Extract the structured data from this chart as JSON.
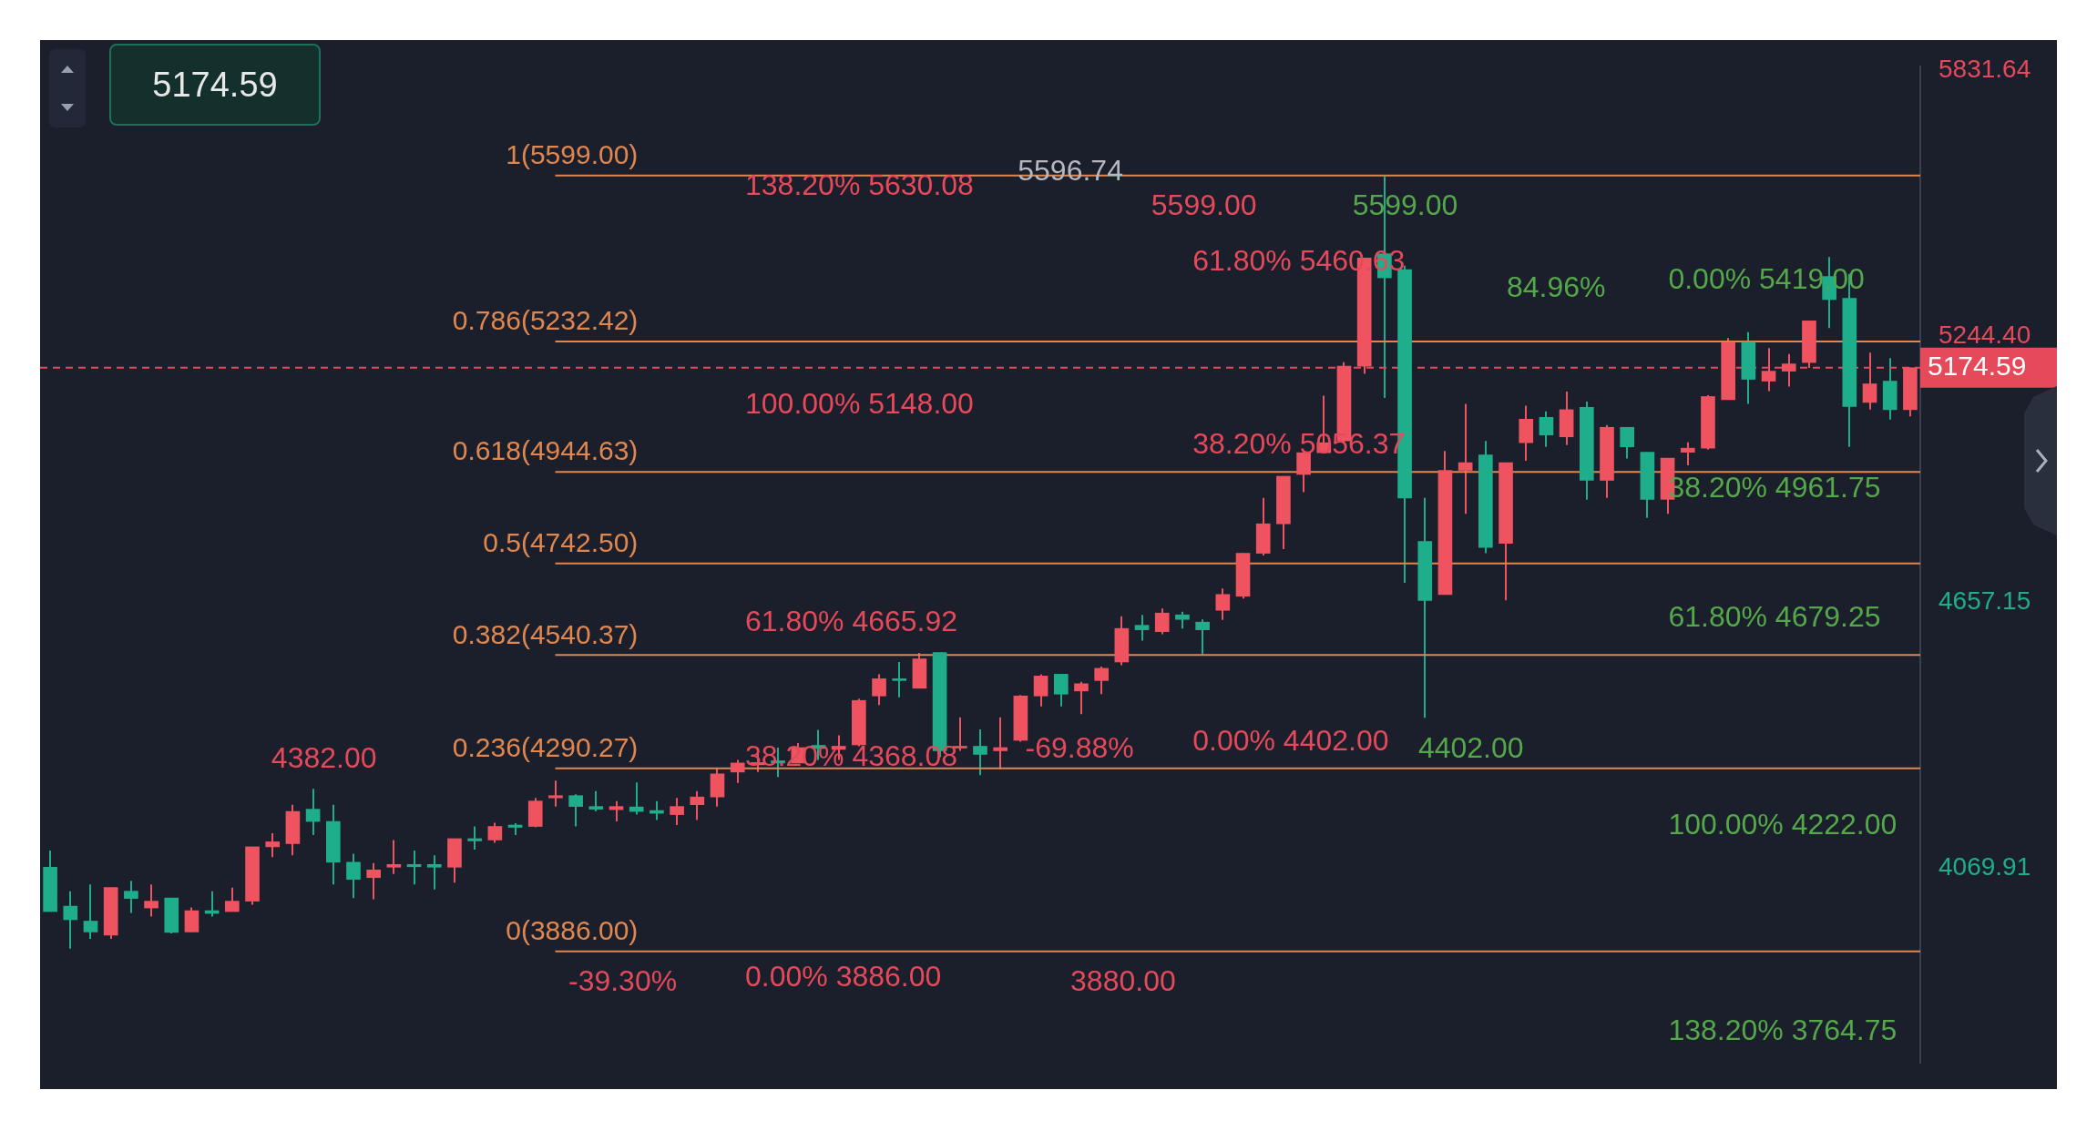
{
  "chart_data": {
    "type": "candlestick",
    "categories": [
      null,
      null,
      null,
      null,
      null,
      null,
      null,
      null,
      null,
      null,
      null,
      null,
      null,
      null,
      null,
      null,
      null,
      null,
      null,
      null,
      null,
      null,
      null,
      null,
      null,
      null,
      null,
      null,
      null,
      null,
      null,
      null,
      null,
      null,
      null,
      null,
      null,
      null,
      null,
      null,
      null,
      null,
      null,
      null,
      null,
      null,
      null,
      null,
      null,
      null,
      null,
      null,
      null,
      null,
      null,
      null,
      null,
      null,
      null,
      null,
      null,
      null,
      null,
      null,
      null,
      null,
      null,
      null,
      null,
      null,
      null,
      null,
      null,
      null,
      null,
      null,
      null,
      null,
      null,
      null,
      null,
      null,
      null,
      null,
      null,
      null,
      null,
      null,
      null,
      null,
      null,
      null,
      null
    ],
    "ohlc": [
      [
        4072,
        4109,
        3974,
        3974
      ],
      [
        3986,
        4019,
        3892,
        3956
      ],
      [
        3953,
        4034,
        3914,
        3929
      ],
      [
        3922,
        4027,
        3914,
        4027
      ],
      [
        4019,
        4042,
        3971,
        4003
      ],
      [
        3982,
        4034,
        3963,
        3997
      ],
      [
        4004,
        4004,
        3926,
        3928
      ],
      [
        3929,
        3983,
        3929,
        3976
      ],
      [
        3976,
        4019,
        3963,
        3970
      ],
      [
        3974,
        4027,
        3974,
        3997
      ],
      [
        3997,
        4117,
        3989,
        4117
      ],
      [
        4117,
        4147,
        4094,
        4128
      ],
      [
        4124,
        4210,
        4098,
        4195
      ],
      [
        4200,
        4245,
        4143,
        4173
      ],
      [
        4173,
        4210,
        4034,
        4083
      ],
      [
        4083,
        4102,
        4004,
        4045
      ],
      [
        4049,
        4081,
        4001,
        4066
      ],
      [
        4072,
        4132,
        4057,
        4078
      ],
      [
        4078,
        4109,
        4034,
        4073
      ],
      [
        4078,
        4098,
        4023,
        4072
      ],
      [
        4072,
        4135,
        4038,
        4135
      ],
      [
        4135,
        4162,
        4111,
        4130
      ],
      [
        4132,
        4170,
        4126,
        4162
      ],
      [
        4165,
        4169,
        4143,
        4160
      ],
      [
        4162,
        4225,
        4160,
        4218
      ],
      [
        4225,
        4263,
        4206,
        4230
      ],
      [
        4230,
        4233,
        4162,
        4206
      ],
      [
        4206,
        4240,
        4195,
        4200
      ],
      [
        4199,
        4218,
        4173,
        4206
      ],
      [
        4205,
        4259,
        4188,
        4195
      ],
      [
        4197,
        4218,
        4176,
        4191
      ],
      [
        4188,
        4225,
        4165,
        4206
      ],
      [
        4210,
        4240,
        4176,
        4227
      ],
      [
        4227,
        4289,
        4206,
        4278
      ],
      [
        4282,
        4309,
        4258,
        4302
      ],
      [
        4298,
        4325,
        4282,
        4303
      ],
      [
        4307,
        4336,
        4271,
        4302
      ],
      [
        4302,
        4346,
        4302,
        4336
      ],
      [
        4341,
        4375,
        4309,
        4334
      ],
      [
        4332,
        4363,
        4309,
        4339
      ],
      [
        4342,
        4444,
        4339,
        4440
      ],
      [
        4450,
        4498,
        4430,
        4488
      ],
      [
        4488,
        4525,
        4447,
        4484
      ],
      [
        4467,
        4545,
        4467,
        4532
      ],
      [
        4546,
        4546,
        4315,
        4329
      ],
      [
        4335,
        4403,
        4329,
        4339
      ],
      [
        4339,
        4376,
        4275,
        4321
      ],
      [
        4329,
        4403,
        4288,
        4336
      ],
      [
        4352,
        4452,
        4349,
        4450
      ],
      [
        4450,
        4498,
        4427,
        4494
      ],
      [
        4498,
        4498,
        4427,
        4454
      ],
      [
        4461,
        4481,
        4410,
        4477
      ],
      [
        4484,
        4515,
        4454,
        4511
      ],
      [
        4525,
        4626,
        4518,
        4599
      ],
      [
        4606,
        4629,
        4572,
        4596
      ],
      [
        4592,
        4643,
        4586,
        4633
      ],
      [
        4629,
        4636,
        4599,
        4619
      ],
      [
        4613,
        4619,
        4542,
        4596
      ],
      [
        4639,
        4687,
        4618,
        4674
      ],
      [
        4670,
        4765,
        4665,
        4765
      ],
      [
        4765,
        4887,
        4760,
        4830
      ],
      [
        4830,
        4935,
        4774,
        4935
      ],
      [
        4939,
        4991,
        4900,
        4987
      ],
      [
        4987,
        5113,
        4987,
        5009
      ],
      [
        5013,
        5187,
        5009,
        5178
      ],
      [
        5178,
        5417,
        5161,
        5417
      ],
      [
        5426,
        5596.74,
        5108,
        5373
      ],
      [
        5391,
        5400,
        4700,
        4887
      ],
      [
        4791,
        4887,
        4402,
        4661
      ],
      [
        4674,
        4991,
        4674,
        4948
      ],
      [
        4948,
        5095,
        4852,
        4965
      ],
      [
        4982,
        5013,
        4765,
        4778
      ],
      [
        4787,
        4965,
        4661,
        4965
      ],
      [
        5009,
        5091,
        4969,
        5061
      ],
      [
        5065,
        5078,
        5000,
        5026
      ],
      [
        5022,
        5122,
        5004,
        5082
      ],
      [
        5087,
        5100,
        4883,
        4926
      ],
      [
        4926,
        5048,
        4887,
        5043
      ],
      [
        5043,
        5043,
        4974,
        5000
      ],
      [
        4988,
        4988,
        4843,
        4884
      ],
      [
        4884,
        4975,
        4852,
        4975
      ],
      [
        4988,
        5010,
        4959,
        4997
      ],
      [
        4997,
        5114,
        4994,
        5111
      ],
      [
        5104,
        5240,
        5104,
        5231
      ],
      [
        5231,
        5253,
        5095,
        5149
      ],
      [
        5145,
        5218,
        5123,
        5167
      ],
      [
        5167,
        5205,
        5133,
        5183
      ],
      [
        5186,
        5278,
        5174,
        5278
      ],
      [
        5376,
        5419,
        5262,
        5325
      ],
      [
        5328,
        5382,
        5000,
        5089
      ],
      [
        5098,
        5208,
        5082,
        5139
      ],
      [
        5145,
        5196,
        5060,
        5082
      ],
      [
        5082,
        5174.59,
        5067,
        5174.59
      ]
    ],
    "colors": [
      "#1fae8c",
      "#1fae8c",
      "#1fae8c",
      "#ef5360",
      "#1fae8c",
      "#ef5360",
      "#1fae8c",
      "#ef5360",
      "#1fae8c",
      "#ef5360",
      "#ef5360",
      "#ef5360",
      "#ef5360",
      "#1fae8c",
      "#1fae8c",
      "#1fae8c",
      "#ef5360",
      "#ef5360",
      "#1fae8c",
      "#1fae8c",
      "#ef5360",
      "#1fae8c",
      "#ef5360",
      "#1fae8c",
      "#ef5360",
      "#ef5360",
      "#1fae8c",
      "#1fae8c",
      "#ef5360",
      "#1fae8c",
      "#1fae8c",
      "#ef5360",
      "#ef5360",
      "#ef5360",
      "#ef5360",
      "#ef5360",
      "#1fae8c",
      "#ef5360",
      "#1fae8c",
      "#ef5360",
      "#ef5360",
      "#ef5360",
      "#1fae8c",
      "#ef5360",
      "#1fae8c",
      "#ef5360",
      "#1fae8c",
      "#ef5360",
      "#ef5360",
      "#ef5360",
      "#1fae8c",
      "#ef5360",
      "#ef5360",
      "#ef5360",
      "#1fae8c",
      "#ef5360",
      "#1fae8c",
      "#1fae8c",
      "#ef5360",
      "#ef5360",
      "#ef5360",
      "#ef5360",
      "#ef5360",
      "#ef5360",
      "#ef5360",
      "#ef5360",
      "#1fae8c",
      "#1fae8c",
      "#1fae8c",
      "#ef5360",
      "#ef5360",
      "#1fae8c",
      "#ef5360",
      "#ef5360",
      "#1fae8c",
      "#ef5360",
      "#1fae8c",
      "#ef5360",
      "#1fae8c",
      "#1fae8c",
      "#ef5360",
      "#ef5360",
      "#ef5360",
      "#ef5360",
      "#1fae8c",
      "#ef5360",
      "#ef5360",
      "#ef5360",
      "#1fae8c",
      "#1fae8c",
      "#ef5360",
      "#1fae8c",
      "#ef5360"
    ],
    "ylim": [
      3640,
      5840
    ],
    "yticks": [
      4069.91,
      4657.15,
      {
        "value": 5244.4,
        "label": "5244.40"
      },
      5831.64
    ],
    "tick_labels": "y",
    "ref_lines": [
      {
        "axis": "y",
        "value": 5599,
        "label": "1(5599.00)",
        "color": "#e0874f"
      },
      {
        "axis": "y",
        "value": 5232.42,
        "label": "0.786(5232.42)",
        "color": "#e0874f"
      },
      {
        "axis": "y",
        "value": 4944.63,
        "label": "0.618(4944.63)",
        "color": "#e0874f"
      },
      {
        "axis": "y",
        "value": 4742.5,
        "label": "0.5(4742.50)",
        "color": "#e0874f"
      },
      {
        "axis": "y",
        "value": 4540.37,
        "label": "0.382(4540.37)",
        "color": "#e0874f"
      },
      {
        "axis": "y",
        "value": 4290.27,
        "label": "0.236(4290.27)",
        "color": "#e0874f"
      },
      {
        "axis": "y",
        "value": 3886.0,
        "label": "0(3886.00)",
        "color": "#e0874f"
      },
      {
        "axis": "y",
        "value": 5174.59,
        "label": "5174.59",
        "color": "#e6495a",
        "line_style": "dashed"
      }
    ],
    "annotations": [
      "5174.59",
      "138.20% 5630.08",
      "5596.74",
      "5599.00",
      "61.80% 5460.63",
      "5599.00",
      "84.96%",
      "0.00% 5419.00",
      "100.00% 5148.00",
      "38.20% 5056.37",
      "38.20% 4961.75",
      "61.80% 4665.92",
      "61.80% 4679.25",
      "0.00% 4402.00",
      "4402.00",
      "-69.88%",
      "38.20% 4368.08",
      "4382.00",
      "100.00% 4222.00",
      "-39.30%",
      "0.00% 3886.00",
      "3880.00",
      "138.20% 3764.75"
    ]
  }
}
